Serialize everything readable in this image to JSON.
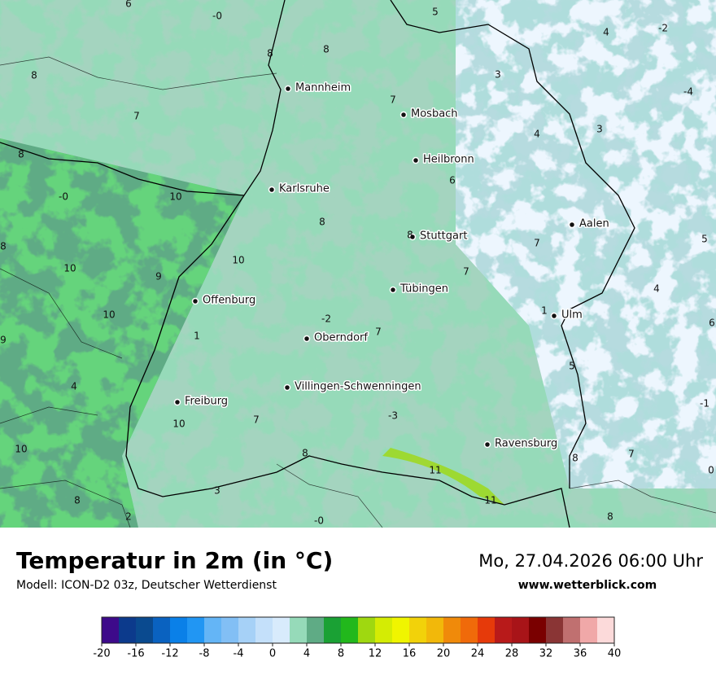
{
  "map": {
    "cities": [
      "Mannheim",
      "Mosbach",
      "Heilbronn",
      "Karlsruhe",
      "Aalen",
      "Stuttgart",
      "Tübingen",
      "Offenburg",
      "Ulm",
      "Oberndorf",
      "Villingen-Schwenningen",
      "Freiburg",
      "Ravensburg"
    ],
    "labels": [
      "6",
      "-0",
      "5",
      "4",
      "-2",
      "8",
      "8",
      "8",
      "3",
      "-4",
      "7",
      "7",
      "4",
      "3",
      "8",
      "6",
      "-0",
      "10",
      "8",
      "8",
      "8",
      "7",
      "5",
      "10",
      "9",
      "10",
      "7",
      "4",
      "10",
      "-2",
      "1",
      "6",
      "9",
      "1",
      "7",
      "5",
      "4",
      "-1",
      "10",
      "7",
      "-3",
      "10",
      "8",
      "11",
      "7",
      "8",
      "0",
      "8",
      "3",
      "11",
      "2",
      "-0",
      "8"
    ]
  },
  "footer": {
    "title": "Temperatur in 2m (in °C)",
    "model": "Modell: ICON-D2 03z, Deutscher Wetterdienst",
    "datetime": "Mo, 27.04.2026 06:00 Uhr",
    "website": "www.wetterblick.com"
  },
  "colorbar": {
    "colors": [
      "#3d0a8a",
      "#0c3a8c",
      "#0a4a8f",
      "#0a62c0",
      "#0a80e8",
      "#2196f3",
      "#64b5f6",
      "#82bff5",
      "#a6d1f7",
      "#c4e0fa",
      "#d8ebfc",
      "#96dab9",
      "#5fab85",
      "#1aa134",
      "#22b81c",
      "#9fd810",
      "#d4ec04",
      "#f0f500",
      "#f2d20a",
      "#f2b80a",
      "#f08a0a",
      "#f06a0a",
      "#e63a0a",
      "#b81a1a",
      "#a81418",
      "#7a0000",
      "#8a3535",
      "#c07070",
      "#f0a8a8",
      "#fcdada"
    ],
    "ticks": [
      -20,
      -16,
      -12,
      -8,
      -4,
      0,
      4,
      8,
      12,
      16,
      20,
      24,
      28,
      32,
      36,
      40
    ]
  }
}
